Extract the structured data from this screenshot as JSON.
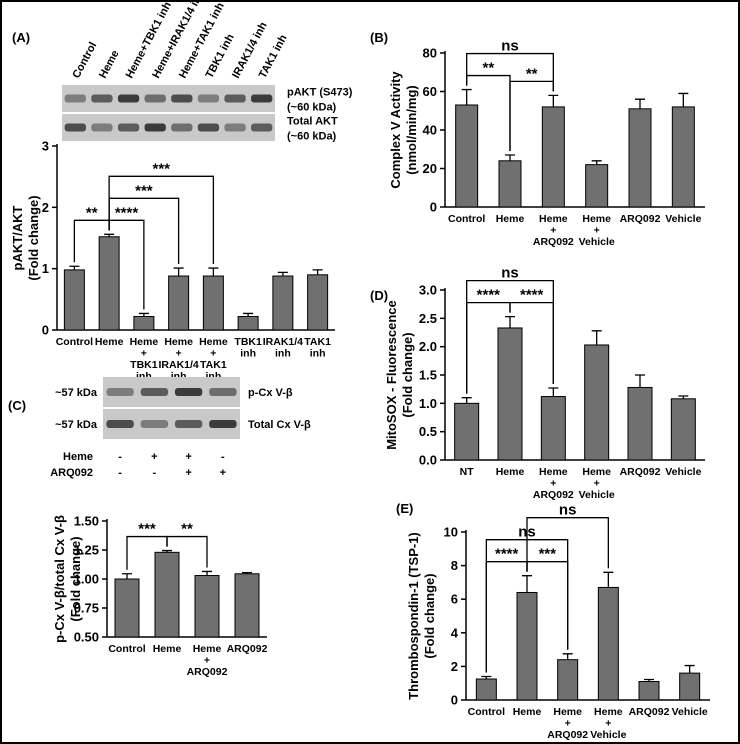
{
  "chart_data": [
    {
      "type": "bar",
      "panel": "(A)",
      "ylabel": [
        "pAKT/AKT",
        "(Fold change)"
      ],
      "categories": [
        [
          "Control"
        ],
        [
          "Heme"
        ],
        [
          "Heme",
          "+",
          "TBK1",
          "inh"
        ],
        [
          "Heme",
          "+",
          "IRAK1/4",
          "inh"
        ],
        [
          "Heme",
          "+",
          "TAK1",
          "inh"
        ],
        [
          "TBK1",
          "inh"
        ],
        [
          "IRAK1/4",
          "inh"
        ],
        [
          "TAK1",
          "inh"
        ]
      ],
      "values": [
        0.98,
        1.52,
        0.22,
        0.88,
        0.88,
        0.22,
        0.88,
        0.9
      ],
      "errors": [
        0.06,
        0.04,
        0.05,
        0.13,
        0.13,
        0.05,
        0.06,
        0.08
      ],
      "color": "#707070",
      "ylim": [
        0,
        3
      ],
      "yticks": [
        0,
        1,
        2,
        3
      ],
      "significance": [
        {
          "between": [
            0,
            1
          ],
          "label": "**"
        },
        {
          "between": [
            1,
            2
          ],
          "label": "****"
        },
        {
          "between": [
            1,
            3
          ],
          "label": "***"
        },
        {
          "between": [
            1,
            4
          ],
          "label": "***"
        }
      ],
      "blot": {
        "lanes": [
          "Control",
          "Heme",
          "Heme+TBK1 inh",
          "Heme+IRAK1/4 inh",
          "Heme+TAK1 inh",
          "TBK1 inh",
          "IRAK1/4 inh",
          "TAK1 inh"
        ],
        "bands": [
          [
            "pAKT (S473)",
            "(~60 kDa)"
          ],
          [
            "Total AKT",
            "(~60 kDa)"
          ]
        ]
      }
    },
    {
      "type": "bar",
      "panel": "(B)",
      "ylabel": [
        "Complex V Activity",
        "(nmol/min/mg)"
      ],
      "categories": [
        [
          "Control"
        ],
        [
          "Heme"
        ],
        [
          "Heme",
          "+",
          "ARQ092"
        ],
        [
          "Heme",
          "+",
          "Vehicle"
        ],
        [
          "ARQ092"
        ],
        [
          "Vehicle"
        ]
      ],
      "values": [
        53,
        24,
        52,
        22,
        51,
        52
      ],
      "errors": [
        8,
        3,
        6,
        2,
        5,
        7
      ],
      "color": "#707070",
      "ylim": [
        0,
        80
      ],
      "yticks": [
        0,
        20,
        40,
        60,
        80
      ],
      "significance": [
        {
          "between": [
            0,
            1
          ],
          "label": "**"
        },
        {
          "between": [
            1,
            2
          ],
          "label": "**"
        },
        {
          "between": [
            0,
            2
          ],
          "label": "ns"
        }
      ]
    },
    {
      "type": "bar",
      "panel": "(C)",
      "ylabel": [
        "p-Cx V-β/total Cx V-β",
        "(Fold change)"
      ],
      "categories": [
        [
          "Control"
        ],
        [
          "Heme"
        ],
        [
          "Heme",
          "+",
          "ARQ092"
        ],
        [
          "ARQ092"
        ]
      ],
      "values": [
        1.0,
        1.23,
        1.03,
        1.045
      ],
      "errors": [
        0.045,
        0.015,
        0.035,
        0.01
      ],
      "color": "#707070",
      "ylim": [
        0.5,
        1.5
      ],
      "yticks": [
        {
          "value": 0.5,
          "label": "0.50"
        },
        0.75,
        {
          "value": 1,
          "label": "1.00"
        },
        1.25,
        {
          "value": 1.5,
          "label": "1.50"
        }
      ],
      "significance": [
        {
          "between": [
            0,
            1
          ],
          "label": "***"
        },
        {
          "between": [
            1,
            2
          ],
          "label": "**"
        }
      ],
      "blot": {
        "bands": [
          {
            "size": "~57 kDa",
            "name": "p-Cx V-β"
          },
          {
            "size": "~57 kDa",
            "name": "Total Cx V-β"
          }
        ],
        "conditions": [
          {
            "name": "Heme",
            "signs": [
              "-",
              "+",
              "+",
              "-"
            ]
          },
          {
            "name": "ARQ092",
            "signs": [
              "-",
              "-",
              "+",
              "+"
            ]
          }
        ]
      }
    },
    {
      "type": "bar",
      "panel": "(D)",
      "ylabel": [
        "MitoSOX - Fluorescence",
        "(Fold change)"
      ],
      "categories": [
        [
          "NT"
        ],
        [
          "Heme"
        ],
        [
          "Heme",
          "+",
          "ARQ092"
        ],
        [
          "Heme",
          "+",
          "Vehicle"
        ],
        [
          "ARQ092"
        ],
        [
          "Vehicle"
        ]
      ],
      "values": [
        1.0,
        2.33,
        1.12,
        2.03,
        1.28,
        1.08
      ],
      "errors": [
        0.1,
        0.2,
        0.15,
        0.25,
        0.22,
        0.05
      ],
      "color": "#707070",
      "ylim": [
        0,
        3
      ],
      "yticks": [
        {
          "value": 0,
          "label": "0.0"
        },
        0.5,
        {
          "value": 1,
          "label": "1.0"
        },
        1.5,
        {
          "value": 2,
          "label": "2.0"
        },
        2.5,
        {
          "value": 3,
          "label": "3.0"
        }
      ],
      "significance": [
        {
          "between": [
            0,
            1
          ],
          "label": "****"
        },
        {
          "between": [
            1,
            2
          ],
          "label": "****"
        },
        {
          "between": [
            0,
            2
          ],
          "label": "ns"
        }
      ]
    },
    {
      "type": "bar",
      "panel": "(E)",
      "ylabel": [
        "Thrombospondin-1 (TSP-1)",
        "(Fold change)"
      ],
      "categories": [
        [
          "Control"
        ],
        [
          "Heme"
        ],
        [
          "Heme",
          "+",
          "ARQ092"
        ],
        [
          "Heme",
          "+",
          "Vehicle"
        ],
        [
          "ARQ092"
        ],
        [
          "Vehicle"
        ]
      ],
      "values": [
        1.25,
        6.4,
        2.4,
        6.7,
        1.1,
        1.6
      ],
      "errors": [
        0.15,
        1.0,
        0.35,
        0.9,
        0.12,
        0.45
      ],
      "color": "#707070",
      "ylim": [
        0,
        10
      ],
      "yticks": [
        0,
        2,
        4,
        6,
        8,
        10
      ],
      "significance": [
        {
          "between": [
            0,
            1
          ],
          "label": "****"
        },
        {
          "between": [
            1,
            2
          ],
          "label": "***"
        },
        {
          "between": [
            0,
            2
          ],
          "label": "ns"
        },
        {
          "between": [
            1,
            3
          ],
          "label": "ns"
        }
      ]
    }
  ]
}
